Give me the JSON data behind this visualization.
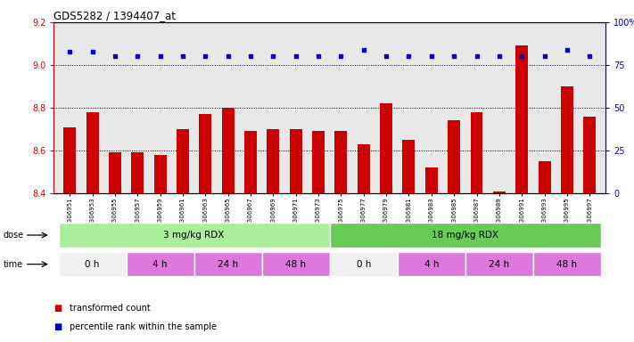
{
  "title": "GDS5282 / 1394407_at",
  "samples": [
    "GSM306951",
    "GSM306953",
    "GSM306955",
    "GSM306957",
    "GSM306959",
    "GSM306961",
    "GSM306963",
    "GSM306965",
    "GSM306967",
    "GSM306969",
    "GSM306971",
    "GSM306973",
    "GSM306975",
    "GSM306977",
    "GSM306979",
    "GSM306981",
    "GSM306983",
    "GSM306985",
    "GSM306987",
    "GSM306989",
    "GSM306991",
    "GSM306993",
    "GSM306995",
    "GSM306997"
  ],
  "bar_values": [
    8.71,
    8.78,
    8.59,
    8.59,
    8.58,
    8.7,
    8.77,
    8.8,
    8.69,
    8.7,
    8.7,
    8.69,
    8.69,
    8.63,
    8.82,
    8.65,
    8.52,
    8.74,
    8.78,
    8.41,
    9.09,
    8.55,
    8.9,
    8.76
  ],
  "percentile_values": [
    83,
    83,
    80,
    80,
    80,
    80,
    80,
    80,
    80,
    80,
    80,
    80,
    80,
    84,
    80,
    80,
    80,
    80,
    80,
    80,
    80,
    80,
    84,
    80
  ],
  "ylim_left": [
    8.4,
    9.2
  ],
  "ylim_right": [
    0,
    100
  ],
  "bar_color": "#cc0000",
  "dot_color": "#0000cc",
  "plot_bg_color": "#e8e8e8",
  "axis_color_left": "#cc0000",
  "axis_color_right": "#0000cc",
  "dose_groups": [
    {
      "label": "3 mg/kg RDX",
      "start": 0,
      "end": 11,
      "color": "#aaee99"
    },
    {
      "label": "18 mg/kg RDX",
      "start": 12,
      "end": 23,
      "color": "#66cc55"
    }
  ],
  "time_groups": [
    {
      "label": "0 h",
      "start": 0,
      "end": 2,
      "color": "#f0f0f0"
    },
    {
      "label": "4 h",
      "start": 3,
      "end": 5,
      "color": "#dd77dd"
    },
    {
      "label": "24 h",
      "start": 6,
      "end": 8,
      "color": "#dd77dd"
    },
    {
      "label": "48 h",
      "start": 9,
      "end": 11,
      "color": "#dd77dd"
    },
    {
      "label": "0 h",
      "start": 12,
      "end": 14,
      "color": "#f0f0f0"
    },
    {
      "label": "4 h",
      "start": 15,
      "end": 17,
      "color": "#dd77dd"
    },
    {
      "label": "24 h",
      "start": 18,
      "end": 20,
      "color": "#dd77dd"
    },
    {
      "label": "48 h",
      "start": 21,
      "end": 23,
      "color": "#dd77dd"
    }
  ],
  "tick_values_left": [
    8.4,
    8.6,
    8.8,
    9.0,
    9.2
  ],
  "tick_values_right": [
    0,
    25,
    50,
    75,
    100
  ],
  "dotted_lines": [
    8.6,
    8.8,
    9.0
  ],
  "legend_items": [
    {
      "color": "#cc0000",
      "label": "transformed count"
    },
    {
      "color": "#0000cc",
      "label": "percentile rank within the sample"
    }
  ],
  "dose_label": "dose",
  "time_label": "time"
}
